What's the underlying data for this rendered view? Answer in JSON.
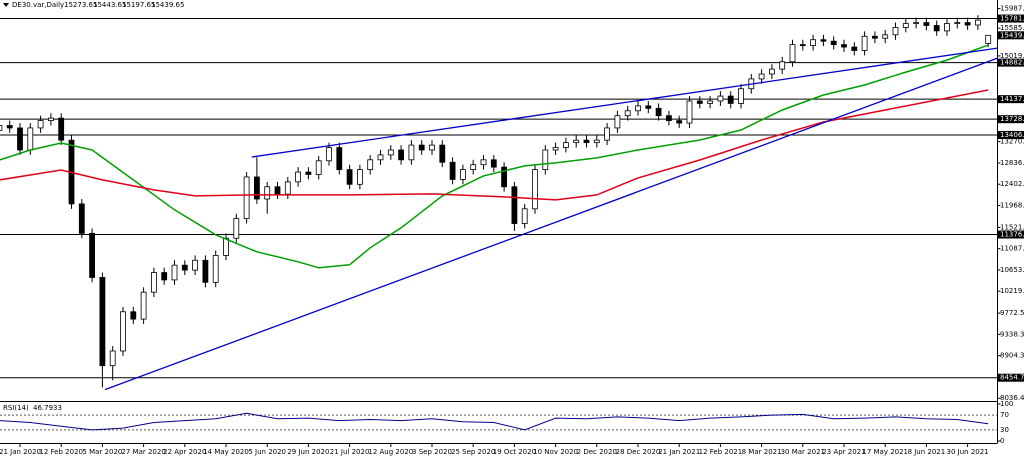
{
  "chart_data": {
    "type": "candlestick",
    "symbol": "DE30.var,Daily",
    "categories": [
      null,
      null,
      "21 Jan 2020",
      null,
      null,
      null,
      "12 Feb 2020",
      null,
      null,
      null,
      "5 Mar 2020",
      null,
      null,
      null,
      "27 Mar 2020",
      null,
      null,
      null,
      "22 Apr 2020",
      null,
      null,
      null,
      "14 May 2020",
      null,
      null,
      null,
      "5 Jun 2020",
      null,
      null,
      null,
      "29 Jun 2020",
      null,
      null,
      null,
      "21 Jul 2020",
      null,
      null,
      null,
      "12 Aug 2020",
      null,
      null,
      null,
      "3 Sep 2020",
      null,
      null,
      null,
      "25 Sep 2020",
      null,
      null,
      null,
      "19 Oct 2020",
      null,
      null,
      null,
      "10 Nov 2020",
      null,
      null,
      null,
      "2 Dec 2020",
      null,
      null,
      null,
      "28 Dec 2020",
      null,
      null,
      null,
      "21 Jan 2021",
      null,
      null,
      null,
      "12 Feb 2021",
      null,
      null,
      null,
      "8 Mar 2021",
      null,
      null,
      null,
      "30 Mar 2021",
      null,
      null,
      null,
      "23 Apr 2021",
      null,
      null,
      null,
      "17 May 2021",
      null,
      null,
      null,
      "8 Jun 2021",
      null,
      null,
      null,
      "30 Jun 2021",
      null,
      null
    ],
    "open": [
      13500,
      13600,
      13550,
      13100,
      13550,
      13700,
      13750,
      13300,
      12000,
      11400,
      10500,
      8700,
      9000,
      9800,
      9650,
      10200,
      10600,
      10450,
      10750,
      10650,
      10850,
      10400,
      10950,
      11300,
      11700,
      12550,
      12100,
      12350,
      12200,
      12450,
      12650,
      12600,
      12880,
      13150,
      12700,
      12400,
      12700,
      12900,
      13000,
      13100,
      12900,
      13200,
      13100,
      13200,
      12850,
      12500,
      12700,
      12800,
      12900,
      12750,
      12350,
      11600,
      11900,
      12700,
      13100,
      13150,
      13250,
      13300,
      13250,
      13300,
      13550,
      13800,
      13900,
      14000,
      13950,
      13800,
      13700,
      13650,
      14100,
      14050,
      14100,
      14200,
      14050,
      14350,
      14550,
      14650,
      14750,
      14900,
      15250,
      15230,
      15350,
      15320,
      15250,
      15200,
      15130,
      15420,
      15380,
      15450,
      15600,
      15680,
      15700,
      15640,
      15530,
      15680,
      15700,
      15650,
      15273.65
    ],
    "high": [
      13700,
      13700,
      13650,
      13650,
      13800,
      13850,
      13850,
      13400,
      12100,
      11500,
      10600,
      9100,
      9900,
      9900,
      10300,
      10700,
      10700,
      10850,
      10850,
      10950,
      10950,
      11050,
      11400,
      11800,
      12650,
      12950,
      12450,
      12450,
      12550,
      12750,
      12750,
      12980,
      13250,
      13250,
      12800,
      12800,
      13000,
      13100,
      13200,
      13200,
      13300,
      13300,
      13300,
      13300,
      12950,
      12800,
      12900,
      13000,
      13000,
      12850,
      12450,
      12000,
      12800,
      13200,
      13250,
      13350,
      13400,
      13400,
      13400,
      13650,
      13900,
      14000,
      14100,
      14100,
      14050,
      13900,
      13800,
      14200,
      14200,
      14200,
      14300,
      14300,
      14450,
      14650,
      14750,
      14850,
      15000,
      15350,
      15350,
      15450,
      15450,
      15420,
      15350,
      15300,
      15520,
      15520,
      15550,
      15700,
      15780,
      15800,
      15800,
      15740,
      15780,
      15800,
      15800,
      15850,
      15443.65
    ],
    "low": [
      13400,
      13450,
      13000,
      13000,
      13450,
      13600,
      13200,
      11900,
      11300,
      10400,
      8255,
      8400,
      8900,
      9550,
      9550,
      10100,
      10350,
      10350,
      10550,
      10550,
      10300,
      10300,
      10850,
      11200,
      11600,
      12000,
      11800,
      12100,
      12100,
      12350,
      12500,
      12500,
      12780,
      12600,
      12300,
      12300,
      12600,
      12800,
      12900,
      12800,
      12800,
      13000,
      13000,
      12750,
      12400,
      12400,
      12600,
      12700,
      12650,
      12250,
      11450,
      11500,
      11800,
      12600,
      13000,
      13050,
      13150,
      13150,
      13150,
      13200,
      13450,
      13700,
      13800,
      13850,
      13700,
      13600,
      13550,
      13550,
      13950,
      13950,
      14000,
      13950,
      13950,
      14250,
      14450,
      14550,
      14650,
      14800,
      15130,
      15130,
      15220,
      15150,
      15100,
      15030,
      15030,
      15280,
      15280,
      15350,
      15500,
      15580,
      15540,
      15430,
      15430,
      15580,
      15550,
      15550,
      15197.65
    ],
    "close": [
      13600,
      13550,
      13100,
      13550,
      13700,
      13750,
      13300,
      12000,
      11400,
      10500,
      8700,
      9000,
      9800,
      9650,
      10200,
      10600,
      10450,
      10750,
      10650,
      10850,
      10400,
      10950,
      11300,
      11700,
      12550,
      12100,
      12350,
      12200,
      12450,
      12650,
      12600,
      12880,
      13150,
      12700,
      12400,
      12700,
      12900,
      13000,
      13100,
      12900,
      13200,
      13100,
      13200,
      12850,
      12500,
      12700,
      12800,
      12900,
      12750,
      12350,
      11600,
      11900,
      12700,
      13100,
      13150,
      13250,
      13300,
      13250,
      13300,
      13550,
      13800,
      13900,
      14000,
      13950,
      13800,
      13700,
      13650,
      14100,
      14050,
      14100,
      14200,
      14050,
      14350,
      14550,
      14650,
      14750,
      14900,
      15250,
      15230,
      15350,
      15320,
      15250,
      15200,
      15130,
      15420,
      15380,
      15450,
      15600,
      15680,
      15700,
      15640,
      15530,
      15680,
      15700,
      15650,
      15750,
      15439.65
    ],
    "color": "#000000",
    "ylim": [
      8000,
      16160
    ],
    "yticks": [
      {
        "value": 15987.65,
        "label": "15987.65"
      },
      {
        "value": 15019.1,
        "label": "15019.10"
      },
      15585.15,
      13270.15,
      {
        "value": 12836.2,
        "label": "12836.20"
      },
      12402.25,
      {
        "value": 11968.3,
        "label": "11968.30"
      },
      {
        "value": 11521.2,
        "label": "11521.20"
      },
      11087.25,
      {
        "value": 10653.3,
        "label": "10653.30"
      },
      10219.35,
      {
        "value": 9772.5,
        "label": "9772.50"
      },
      {
        "value": 9338.3,
        "label": "9338.30"
      },
      8904.35,
      8036.45
    ],
    "levels": [
      {
        "value": 15781.5,
        "label": "15781.50"
      },
      14882.86,
      {
        "value": 14137.2,
        "label": "14137.20"
      },
      {
        "value": 13728.6,
        "label": "13728.60"
      },
      {
        "value": 13406.7,
        "label": "13406.70"
      },
      {
        "value": 11376.4,
        "label": "11376.40"
      },
      {
        "value": 8454.7,
        "label": "8454.70"
      }
    ],
    "moving_averages": [
      {
        "color": "#00a000",
        "x": [
          0,
          3,
          6,
          9,
          13,
          17,
          21,
          25,
          29,
          31,
          34,
          36,
          39,
          43,
          47,
          51,
          54,
          58,
          62,
          68,
          72,
          76,
          80,
          84,
          88,
          92,
          96
        ],
        "values": [
          12897,
          13100,
          13243,
          13100,
          12490,
          11880,
          11370,
          11023,
          10819,
          10697,
          10758,
          11104,
          11512,
          12164,
          12571,
          12775,
          12836,
          12938,
          13100,
          13304,
          13508,
          13915,
          14221,
          14425,
          14690,
          14934,
          15240
        ]
      },
      {
        "color": "#e0001a",
        "x": [
          0,
          6,
          10,
          15,
          19,
          25,
          34,
          42,
          49,
          54,
          58,
          62,
          68,
          74,
          80,
          85,
          91,
          96
        ],
        "values": [
          12490,
          12693,
          12490,
          12286,
          12164,
          12184,
          12184,
          12204,
          12143,
          12082,
          12184,
          12530,
          12897,
          13304,
          13671,
          13875,
          14119,
          14323
        ]
      }
    ],
    "trendlines": [
      {
        "color": "#0000cc",
        "x": [
          24.5,
          96.9
        ],
        "values": [
          12958,
          15178
        ]
      },
      {
        "color": "#0000cc",
        "x": [
          10.25,
          96.9
        ],
        "values": [
          8212,
          14975
        ]
      }
    ],
    "rsi": {
      "name": "RSI(14)",
      "color": "#00008b",
      "ylim": [
        0,
        100
      ],
      "yticks": [
        100,
        70,
        30,
        0
      ],
      "x": [
        0,
        3,
        6,
        9,
        12,
        15,
        18,
        21,
        24,
        27,
        30,
        33,
        36,
        39,
        42,
        45,
        48,
        51,
        54,
        57,
        60,
        63,
        66,
        69,
        72,
        75,
        78,
        81,
        84,
        87,
        90,
        93,
        96
      ],
      "values": [
        55,
        50,
        40,
        30,
        35,
        50,
        55,
        60,
        75,
        60,
        62,
        55,
        58,
        55,
        60,
        52,
        50,
        30,
        62,
        60,
        65,
        62,
        55,
        62,
        65,
        70,
        72,
        60,
        62,
        65,
        60,
        58,
        46.7933
      ]
    }
  }
}
